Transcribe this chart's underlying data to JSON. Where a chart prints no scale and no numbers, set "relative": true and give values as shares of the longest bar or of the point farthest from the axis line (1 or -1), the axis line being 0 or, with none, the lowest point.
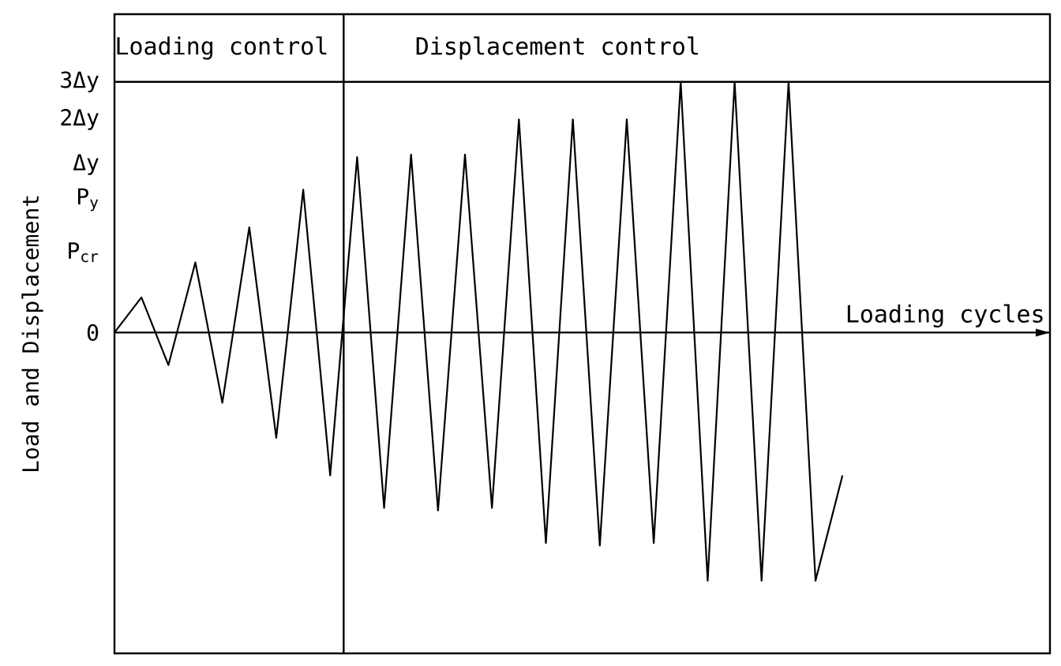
{
  "chart_data": {
    "type": "line",
    "relative": true,
    "ylabel": "Load and Displacement",
    "xlabel": "Loading cycles",
    "annotations": [
      "Loading control",
      "Displacement control",
      "0",
      "P$_{cr}$",
      "P$_{y}$",
      "Δy",
      "2Δy",
      "3Δy"
    ],
    "categories": [
      null,
      null,
      null,
      null,
      null,
      null,
      null,
      null,
      null,
      null,
      null,
      null,
      null,
      null,
      null,
      null,
      null,
      null,
      null,
      null,
      null,
      null,
      null,
      null,
      null,
      null,
      null,
      null
    ],
    "series": [
      {
        "color": "#000000",
        "values": [
          0,
          0.14,
          -0.13,
          0.28,
          -0.28,
          0.42,
          -0.42,
          0.57,
          -0.57,
          0.7,
          -0.7,
          0.71,
          -0.71,
          0.71,
          -0.7,
          0.85,
          -0.84,
          0.85,
          -0.85,
          0.85,
          -0.84,
          1.0,
          -0.99,
          1.0,
          -0.99,
          1.0,
          -0.99,
          -0.57
        ]
      }
    ],
    "grid": false,
    "marker": "none",
    "line_style": "solid"
  }
}
